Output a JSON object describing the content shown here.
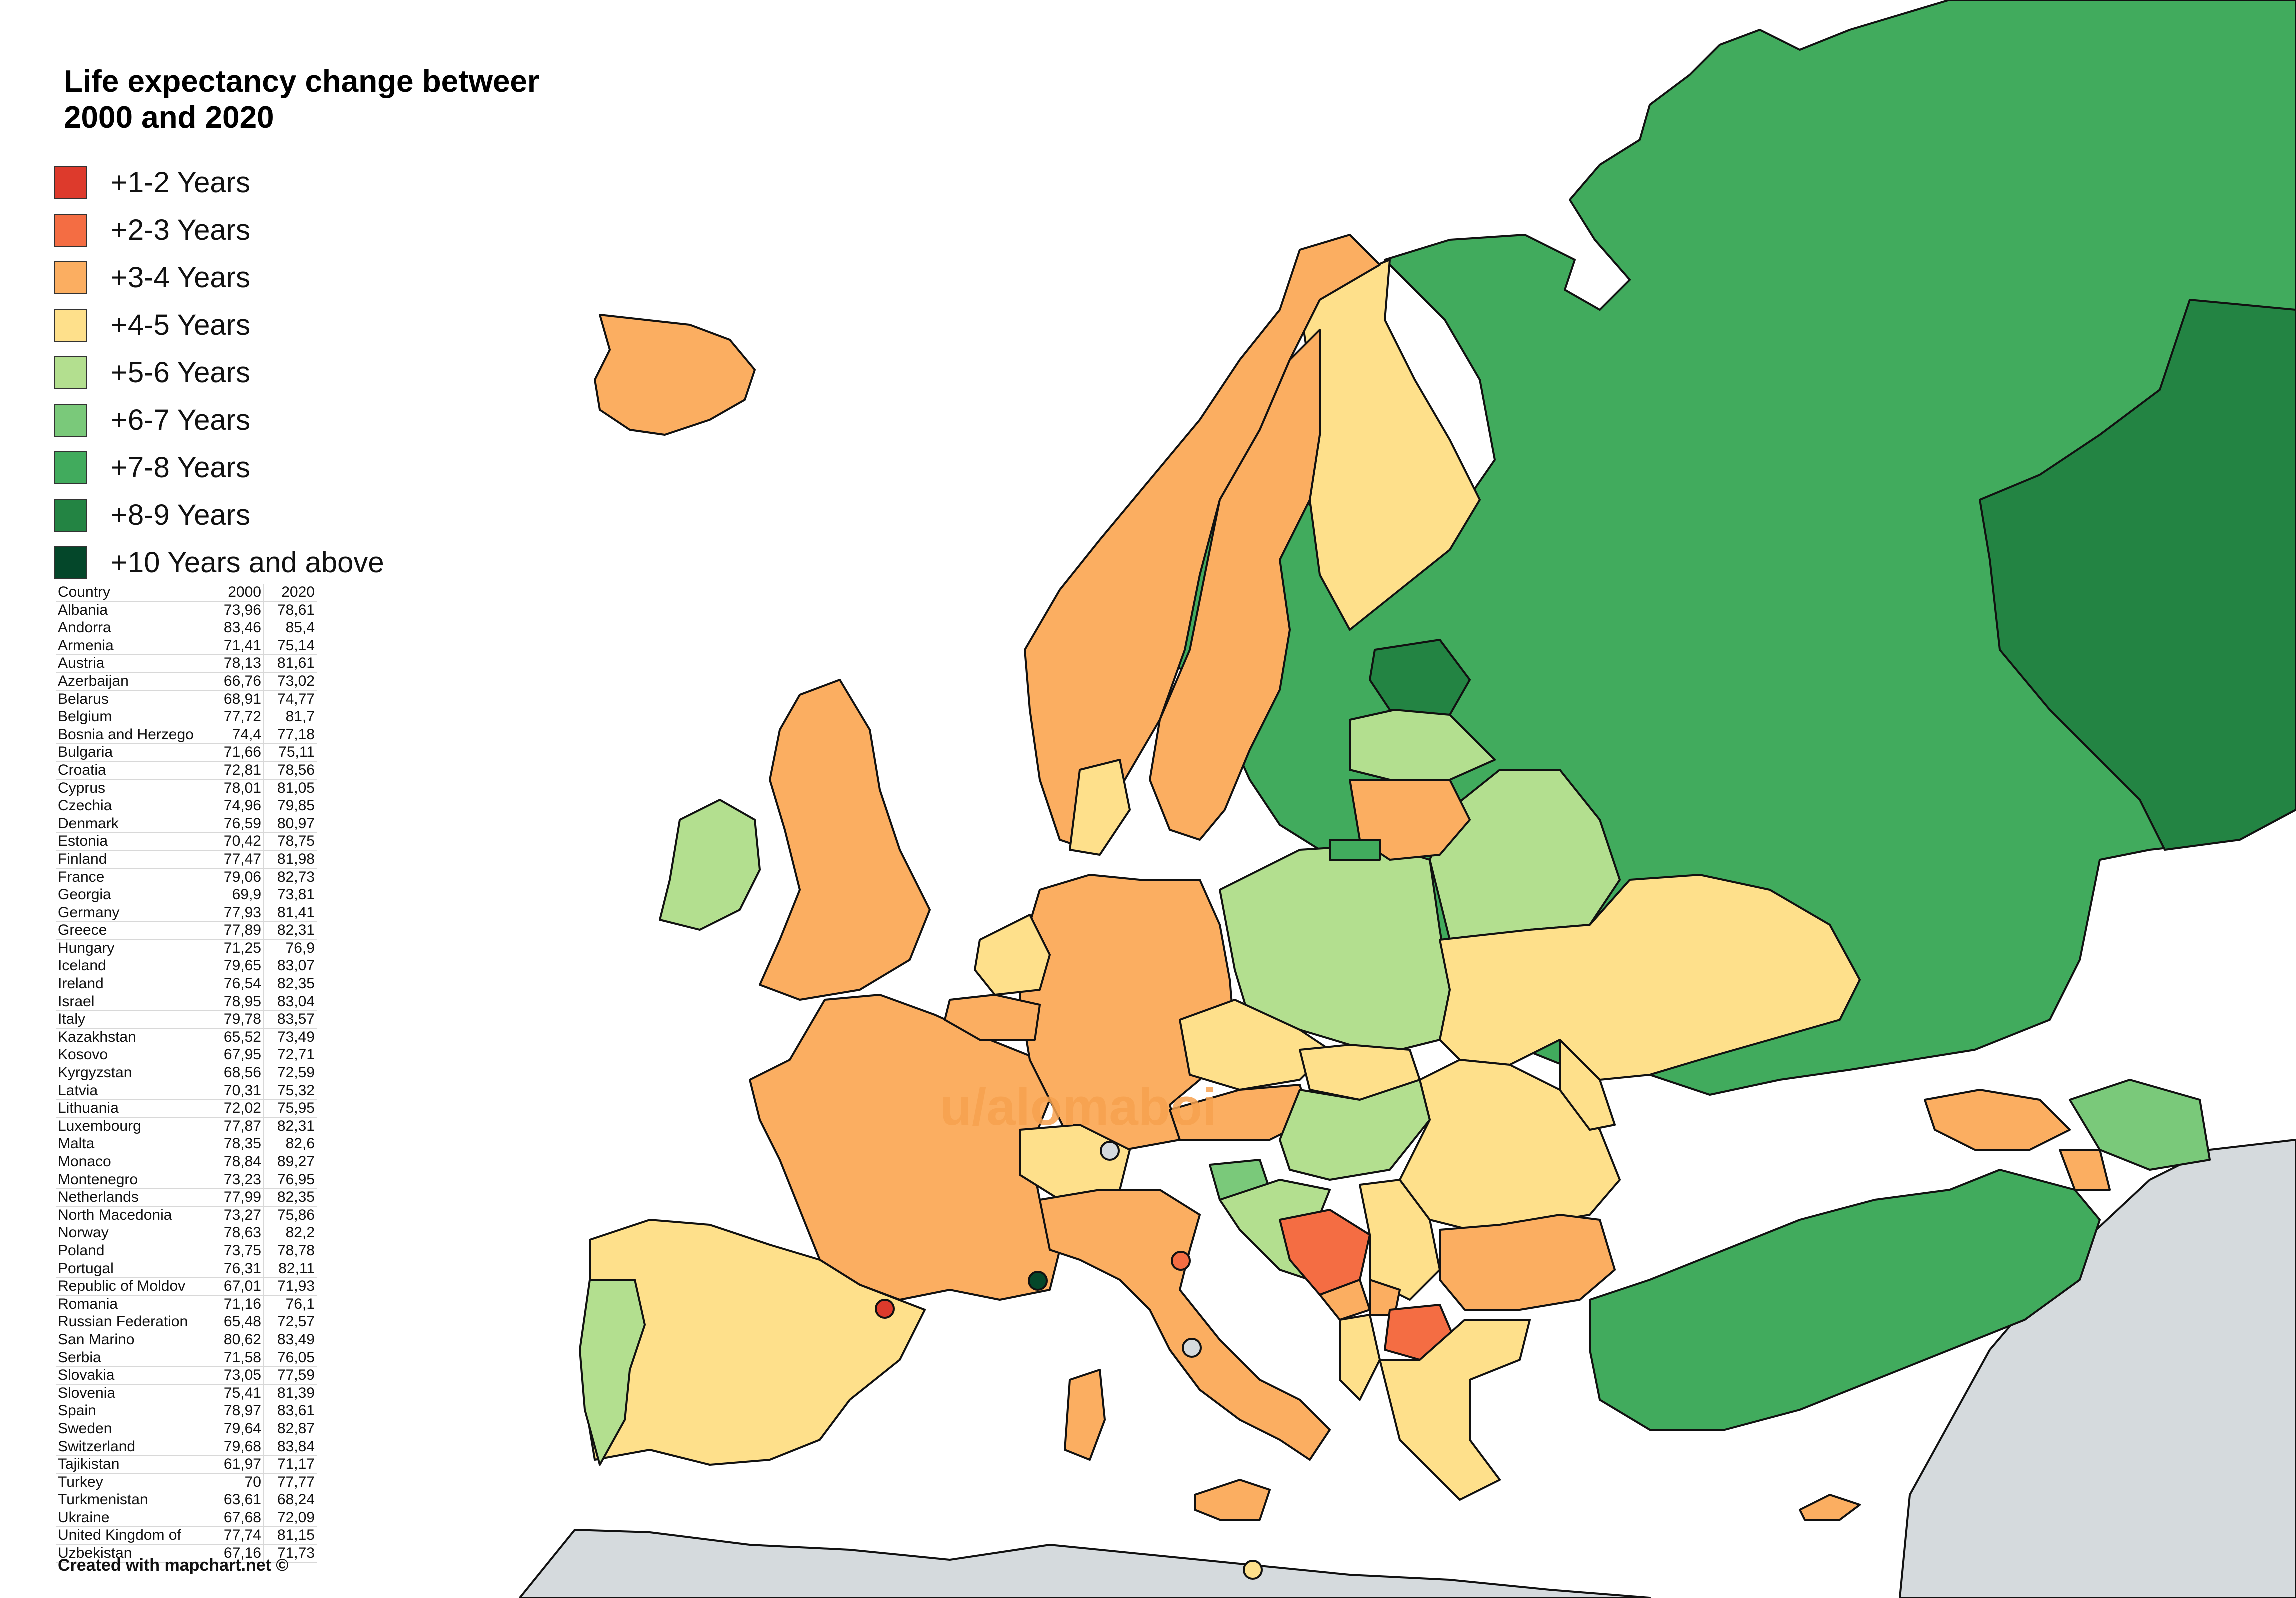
{
  "title": {
    "line1": "Life expectancy change betweer",
    "line2": "2000 and 2020"
  },
  "legend": [
    {
      "label": "+1-2 Years",
      "color": "#dd3a2c"
    },
    {
      "label": "+2-3 Years",
      "color": "#f46d43"
    },
    {
      "label": "+3-4 Years",
      "color": "#fbae61"
    },
    {
      "label": "+4-5 Years",
      "color": "#fee08b"
    },
    {
      "label": "+5-6 Years",
      "color": "#b3df8f"
    },
    {
      "label": "+6-7 Years",
      "color": "#7ac97a"
    },
    {
      "label": "+7-8 Years",
      "color": "#41ab5d"
    },
    {
      "label": "+8-9 Years",
      "color": "#238443"
    },
    {
      "label": "+10 Years and above",
      "color": "#04472a"
    }
  ],
  "table": {
    "headers": [
      "Country",
      "2000",
      "2020"
    ],
    "rows": [
      [
        "Albania",
        "73,96",
        "78,61"
      ],
      [
        "Andorra",
        "83,46",
        "85,4"
      ],
      [
        "Armenia",
        "71,41",
        "75,14"
      ],
      [
        "Austria",
        "78,13",
        "81,61"
      ],
      [
        "Azerbaijan",
        "66,76",
        "73,02"
      ],
      [
        "Belarus",
        "68,91",
        "74,77"
      ],
      [
        "Belgium",
        "77,72",
        "81,7"
      ],
      [
        "Bosnia and Herzego",
        "74,4",
        "77,18"
      ],
      [
        "Bulgaria",
        "71,66",
        "75,11"
      ],
      [
        "Croatia",
        "72,81",
        "78,56"
      ],
      [
        "Cyprus",
        "78,01",
        "81,05"
      ],
      [
        "Czechia",
        "74,96",
        "79,85"
      ],
      [
        "Denmark",
        "76,59",
        "80,97"
      ],
      [
        "Estonia",
        "70,42",
        "78,75"
      ],
      [
        "Finland",
        "77,47",
        "81,98"
      ],
      [
        "France",
        "79,06",
        "82,73"
      ],
      [
        "Georgia",
        "69,9",
        "73,81"
      ],
      [
        "Germany",
        "77,93",
        "81,41"
      ],
      [
        "Greece",
        "77,89",
        "82,31"
      ],
      [
        "Hungary",
        "71,25",
        "76,9"
      ],
      [
        "Iceland",
        "79,65",
        "83,07"
      ],
      [
        "Ireland",
        "76,54",
        "82,35"
      ],
      [
        "Israel",
        "78,95",
        "83,04"
      ],
      [
        "Italy",
        "79,78",
        "83,57"
      ],
      [
        "Kazakhstan",
        "65,52",
        "73,49"
      ],
      [
        "Kosovo",
        "67,95",
        "72,71"
      ],
      [
        "Kyrgyzstan",
        "68,56",
        "72,59"
      ],
      [
        "Latvia",
        "70,31",
        "75,32"
      ],
      [
        "Lithuania",
        "72,02",
        "75,95"
      ],
      [
        "Luxembourg",
        "77,87",
        "82,31"
      ],
      [
        "Malta",
        "78,35",
        "82,6"
      ],
      [
        "Monaco",
        "78,84",
        "89,27"
      ],
      [
        "Montenegro",
        "73,23",
        "76,95"
      ],
      [
        "Netherlands",
        "77,99",
        "82,35"
      ],
      [
        "North Macedonia",
        "73,27",
        "75,86"
      ],
      [
        "Norway",
        "78,63",
        "82,2"
      ],
      [
        "Poland",
        "73,75",
        "78,78"
      ],
      [
        "Portugal",
        "76,31",
        "82,11"
      ],
      [
        "Republic of Moldov",
        "67,01",
        "71,93"
      ],
      [
        "Romania",
        "71,16",
        "76,1"
      ],
      [
        "Russian Federation",
        "65,48",
        "72,57"
      ],
      [
        "San Marino",
        "80,62",
        "83,49"
      ],
      [
        "Serbia",
        "71,58",
        "76,05"
      ],
      [
        "Slovakia",
        "73,05",
        "77,59"
      ],
      [
        "Slovenia",
        "75,41",
        "81,39"
      ],
      [
        "Spain",
        "78,97",
        "83,61"
      ],
      [
        "Sweden",
        "79,64",
        "82,87"
      ],
      [
        "Switzerland",
        "79,68",
        "83,84"
      ],
      [
        "Tajikistan",
        "61,97",
        "71,17"
      ],
      [
        "Turkey",
        "70",
        "77,77"
      ],
      [
        "Turkmenistan",
        "63,61",
        "68,24"
      ],
      [
        "Ukraine",
        "67,68",
        "72,09"
      ],
      [
        "United Kingdom of",
        "77,74",
        "81,15"
      ],
      [
        "Uzbekistan",
        "67,16",
        "71,73"
      ]
    ]
  },
  "footer": "Created with mapchart.net ©",
  "watermark": "u/alomaboi",
  "colors": {
    "no_data": "#d5dadd",
    "border": "#111111",
    "sea": "#ffffff"
  }
}
